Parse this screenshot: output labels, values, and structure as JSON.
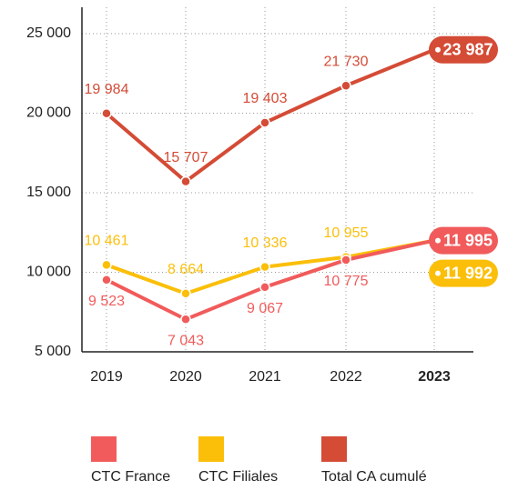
{
  "chart_data": {
    "type": "line",
    "categories": [
      "2019",
      "2020",
      "2021",
      "2022",
      "2023"
    ],
    "series": [
      {
        "name": "CTC France",
        "color": "#f15b5b",
        "values": [
          9523,
          7043,
          9067,
          10775,
          11995
        ],
        "value_labels": [
          "9 523",
          "7 043",
          "9 067",
          "10 775",
          "11 995"
        ]
      },
      {
        "name": "CTC Filiales",
        "color": "#fbbf0a",
        "values": [
          10461,
          8664,
          10336,
          10955,
          11992
        ],
        "value_labels": [
          "10 461",
          "8 664",
          "10 336",
          "10 955",
          "11 992"
        ]
      },
      {
        "name": "Total CA cumulé",
        "color": "#d44b36",
        "values": [
          19984,
          15707,
          19403,
          21730,
          23987
        ],
        "value_labels": [
          "19 984",
          "15 707",
          "19 403",
          "21 730",
          "23 987"
        ]
      }
    ],
    "ylim": [
      5000,
      25000
    ],
    "yticks": [
      {
        "value": 5000,
        "label": "5 000"
      },
      {
        "value": 10000,
        "label": "10 000"
      },
      {
        "value": 15000,
        "label": "15 000"
      },
      {
        "value": 20000,
        "label": "20 000"
      },
      {
        "value": 25000,
        "label": "25 000"
      }
    ],
    "grid": true,
    "legend": "bottom"
  }
}
